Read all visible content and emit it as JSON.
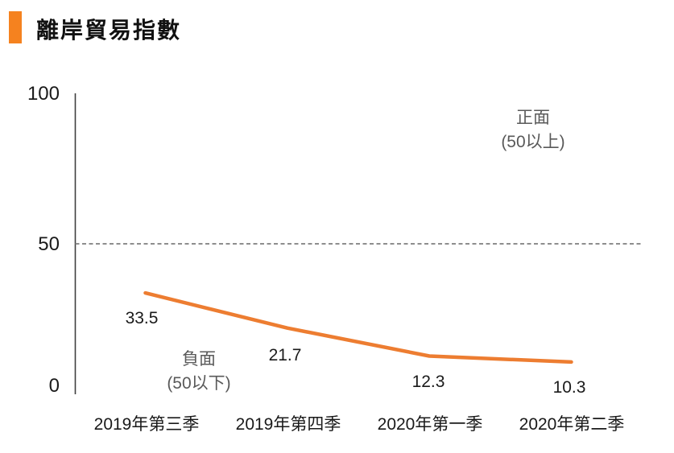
{
  "header": {
    "title": "離岸貿易指數",
    "accent_color": "#F5821F"
  },
  "chart_data": {
    "type": "line",
    "title": "離岸貿易指數",
    "categories": [
      "2019年第三季",
      "2019年第四季",
      "2020年第一季",
      "2020年第二季"
    ],
    "values": [
      33.5,
      21.7,
      12.3,
      10.3
    ],
    "series": [
      {
        "name": "離岸貿易指數",
        "values": [
          33.5,
          21.7,
          12.3,
          10.3
        ]
      }
    ],
    "xlabel": "",
    "ylabel": "",
    "ylim": [
      0,
      100
    ],
    "yticks": [
      0,
      50,
      100
    ],
    "grid": "off",
    "legend": "none",
    "line_color": "#ED7D31",
    "axis_color": "#3F3F3F",
    "reference_line": {
      "value": 50,
      "style": "dashed",
      "color": "#7F7F7F"
    },
    "annotations": [
      {
        "id": "positive-zone",
        "text_lines": [
          "正面",
          "(50以上)"
        ],
        "position": "upper-right",
        "color": "#595959"
      },
      {
        "id": "negative-zone",
        "text_lines": [
          "負面",
          "(50以下)"
        ],
        "position": "lower-left",
        "color": "#595959"
      }
    ]
  }
}
